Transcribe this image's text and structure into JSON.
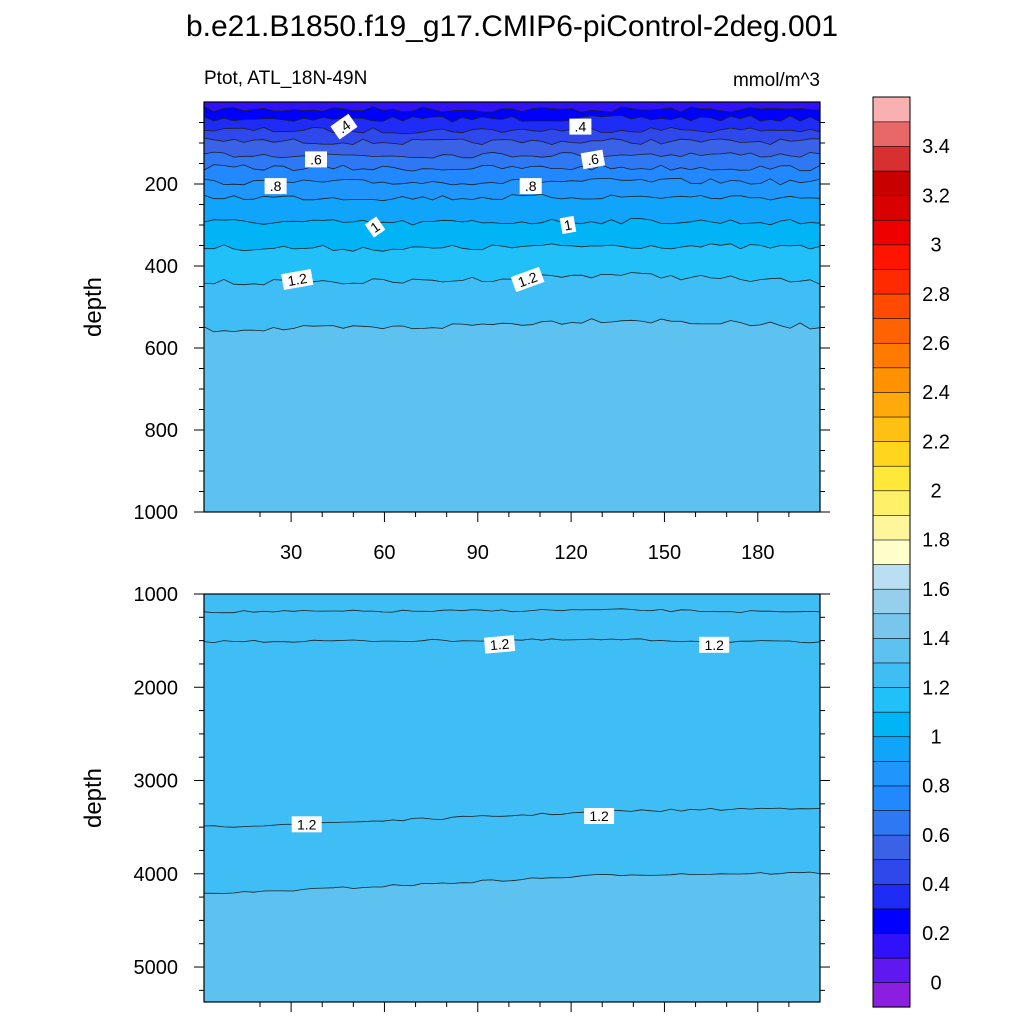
{
  "chart_data": {
    "type": "heatmap",
    "title": "b.e21.B1850.f19_g17.CMIP6-piControl-2deg.001",
    "left_label": "Ptot, ATL_18N-49N",
    "right_label": "mmol/m^3",
    "colors": {
      "contour_line": "#202020",
      "frame": "#000000",
      "label_bg": "#ffffff"
    },
    "xaxis": {
      "range": [
        2,
        200
      ],
      "ticks": [
        30,
        60,
        90,
        120,
        150,
        180
      ],
      "tick_labels": [
        "30",
        "60",
        "90",
        "120",
        "150",
        "180"
      ],
      "minor_step": 10
    },
    "panels": [
      {
        "name": "upper",
        "ylabel": "depth",
        "ylim": [
          0,
          1000
        ],
        "yticks": [
          200,
          400,
          600,
          800,
          1000
        ],
        "ytick_labels": [
          "200",
          "400",
          "600",
          "800",
          "1000"
        ],
        "yminor_step": 50,
        "show_xtick_labels": true,
        "contours": [
          {
            "level": 0.2,
            "depth": [
              18,
              18,
              19,
              18
            ]
          },
          {
            "level": 0.3,
            "depth": [
              40,
              42,
              40,
              41
            ]
          },
          {
            "level": 0.4,
            "depth": [
              68,
              70,
              67,
              69
            ]
          },
          {
            "level": 0.5,
            "depth": [
              95,
              98,
              96,
              97
            ]
          },
          {
            "level": 0.6,
            "depth": [
              128,
              130,
              127,
              129
            ]
          },
          {
            "level": 0.7,
            "depth": [
              160,
              162,
              160,
              161
            ]
          },
          {
            "level": 0.8,
            "depth": [
              195,
              196,
              193,
              195
            ]
          },
          {
            "level": 0.9,
            "depth": [
              232,
              234,
              231,
              233
            ]
          },
          {
            "level": 1.0,
            "depth": [
              292,
              295,
              290,
              294
            ]
          },
          {
            "level": 1.1,
            "depth": [
              355,
              358,
              350,
              355
            ]
          },
          {
            "level": 1.2,
            "depth": [
              440,
              438,
              420,
              440
            ]
          },
          {
            "level": 1.3,
            "depth": [
              555,
              550,
              530,
              548
            ]
          }
        ],
        "bottom_level": 1.35,
        "labels": [
          {
            "text": ".4",
            "x": 47,
            "depth": 60,
            "angle": -35
          },
          {
            "text": ".4",
            "x": 123,
            "depth": 60,
            "angle": 0
          },
          {
            "text": ".6",
            "x": 38,
            "depth": 140,
            "angle": 0
          },
          {
            "text": ".6",
            "x": 127,
            "depth": 140,
            "angle": -10
          },
          {
            "text": ".8",
            "x": 25,
            "depth": 205,
            "angle": 0
          },
          {
            "text": ".8",
            "x": 107,
            "depth": 205,
            "angle": 0
          },
          {
            "text": "1",
            "x": 57,
            "depth": 305,
            "angle": -35
          },
          {
            "text": "1",
            "x": 119,
            "depth": 300,
            "angle": -10
          },
          {
            "text": "1.2",
            "x": 32,
            "depth": 433,
            "angle": -10
          },
          {
            "text": "1.2",
            "x": 106,
            "depth": 433,
            "angle": -20
          }
        ]
      },
      {
        "name": "lower",
        "ylabel": "depth",
        "ylim": [
          1000,
          5375
        ],
        "yticks": [
          1000,
          2000,
          3000,
          4000,
          5000
        ],
        "ytick_labels": [
          "1000",
          "2000",
          "3000",
          "4000",
          "5000"
        ],
        "yminor_step": 250,
        "show_xtick_labels": false,
        "contours": [
          {
            "level": 1.3,
            "depth": [
              1190,
              1185,
              1170,
              1200
            ]
          },
          {
            "level": 1.2,
            "depth": [
              1510,
              1500,
              1490,
              1520
            ]
          },
          {
            "level": 1.2,
            "depth": [
              3500,
              3420,
              3330,
              3290
            ]
          },
          {
            "level": 1.3,
            "depth": [
              4220,
              4120,
              4010,
              3990
            ]
          }
        ],
        "bottom_level": 1.35,
        "labels": [
          {
            "text": "1.2",
            "x": 97,
            "depth": 1540,
            "angle": -5
          },
          {
            "text": "1.2",
            "x": 166,
            "depth": 1545,
            "angle": 0
          },
          {
            "text": "1.2",
            "x": 35,
            "depth": 3470,
            "angle": 0
          },
          {
            "text": "1.2",
            "x": 129,
            "depth": 3380,
            "angle": 0
          }
        ]
      }
    ],
    "colorbar": {
      "levels": [
        -0.1,
        0,
        0.1,
        0.2,
        0.3,
        0.4,
        0.5,
        0.6,
        0.7,
        0.8,
        0.9,
        1.0,
        1.1,
        1.2,
        1.3,
        1.4,
        1.5,
        1.6,
        1.7,
        1.8,
        1.9,
        2.0,
        2.1,
        2.2,
        2.3,
        2.4,
        2.5,
        2.6,
        2.7,
        2.8,
        2.9,
        3.0,
        3.1,
        3.2,
        3.3,
        3.4,
        3.5,
        3.6
      ],
      "colors": [
        "#8c1ee0",
        "#6018f0",
        "#3012f8",
        "#0000ff",
        "#1e2cf6",
        "#2e48ec",
        "#3a62e6",
        "#2e78f4",
        "#2288ff",
        "#1e96fc",
        "#10a4fa",
        "#00b4f6",
        "#22c0f8",
        "#3ebef4",
        "#5ec2f0",
        "#78c6ec",
        "#96cfec",
        "#b8e0f2",
        "#ffffcc",
        "#fff59a",
        "#fff06a",
        "#ffe838",
        "#ffd51e",
        "#ffc014",
        "#ffaa0a",
        "#ff9200",
        "#ff7a00",
        "#ff6200",
        "#ff4a00",
        "#ff2a00",
        "#ff1400",
        "#ee0000",
        "#d80000",
        "#c80000",
        "#d83030",
        "#e86868",
        "#f8b0b0"
      ],
      "tick_values": [
        0,
        0.2,
        0.4,
        0.6,
        0.8,
        1,
        1.2,
        1.4,
        1.6,
        1.8,
        2,
        2.2,
        2.4,
        2.6,
        2.8,
        3,
        3.2,
        3.4
      ],
      "tick_labels": [
        "0",
        "0.2",
        "0.4",
        "0.6",
        "0.8",
        "1",
        "1.2",
        "1.4",
        "1.6",
        "1.8",
        "2",
        "2.2",
        "2.4",
        "2.6",
        "2.8",
        "3",
        "3.2",
        "3.4"
      ]
    }
  }
}
